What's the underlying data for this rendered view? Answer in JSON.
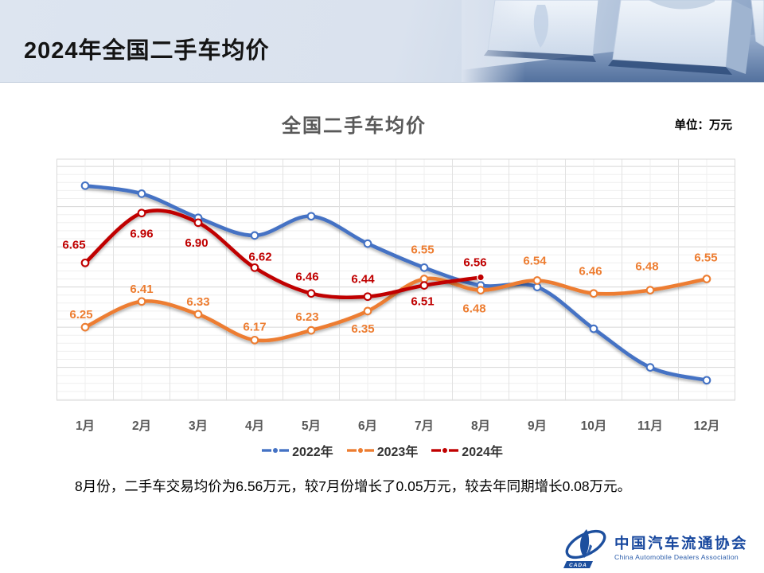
{
  "slide": {
    "header": {
      "title": "2024年全国二手车均价"
    },
    "chart": {
      "title": "全国二手车均价",
      "unit_label": "单位：万元",
      "legend": [
        {
          "label": "2022年",
          "color": "#4472C4"
        },
        {
          "label": "2023年",
          "color": "#ED7D31"
        },
        {
          "label": "2024年",
          "color": "#C00000"
        }
      ]
    },
    "summary": "8月份，二手车交易均价为6.56万元，较7月份增长了0.05万元，较去年同期增长0.08万元。",
    "logo": {
      "name_cn": "中国汽车流通协会",
      "name_en": "China Automobile Dealers Association",
      "badge": "CADA"
    }
  },
  "chart_data": {
    "type": "line",
    "title": "全国二手车均价",
    "unit": "万元",
    "categories": [
      "1月",
      "2月",
      "3月",
      "4月",
      "5月",
      "6月",
      "7月",
      "8月",
      "9月",
      "10月",
      "11月",
      "12月"
    ],
    "series": [
      {
        "name": "2022年",
        "color": "#4472C4",
        "values": [
          7.13,
          7.08,
          6.93,
          6.82,
          6.94,
          6.77,
          6.62,
          6.51,
          6.5,
          6.24,
          6.0,
          5.92
        ],
        "labels_shown": false,
        "note": "no data labels shown in source; values estimated from curve position"
      },
      {
        "name": "2023年",
        "color": "#ED7D31",
        "values": [
          6.25,
          6.41,
          6.33,
          6.17,
          6.23,
          6.35,
          6.55,
          6.48,
          6.54,
          6.46,
          6.48,
          6.55
        ],
        "labels_shown": true
      },
      {
        "name": "2024年",
        "color": "#C00000",
        "values": [
          6.65,
          6.96,
          6.9,
          6.62,
          6.46,
          6.44,
          6.51,
          6.56
        ],
        "labels_shown": true,
        "last_point_solid": true
      }
    ],
    "ylim": [
      5.795,
      7.295
    ],
    "y_minor_step": 0.05,
    "y_major_step": 0.25,
    "x_axis_label_color": "#595959",
    "grid": true,
    "smooth_lines": true,
    "legend_position": "bottom",
    "label_offsets": {
      "2023年": [
        [
          -5,
          -16
        ],
        [
          0,
          -16
        ],
        [
          0,
          -16
        ],
        [
          0,
          -17
        ],
        [
          -5,
          -17
        ],
        [
          -6,
          22
        ],
        [
          -2,
          -37
        ],
        [
          -8,
          23
        ],
        [
          -3,
          -25
        ],
        [
          -4,
          -28
        ],
        [
          -4,
          -30
        ],
        [
          -1,
          -27
        ]
      ],
      "2024年": [
        [
          -14,
          -23
        ],
        [
          0,
          26
        ],
        [
          -2,
          25
        ],
        [
          7,
          -14
        ],
        [
          -5,
          -21
        ],
        [
          -6,
          -22
        ],
        [
          -2,
          20
        ],
        [
          -7,
          -19
        ]
      ]
    }
  }
}
